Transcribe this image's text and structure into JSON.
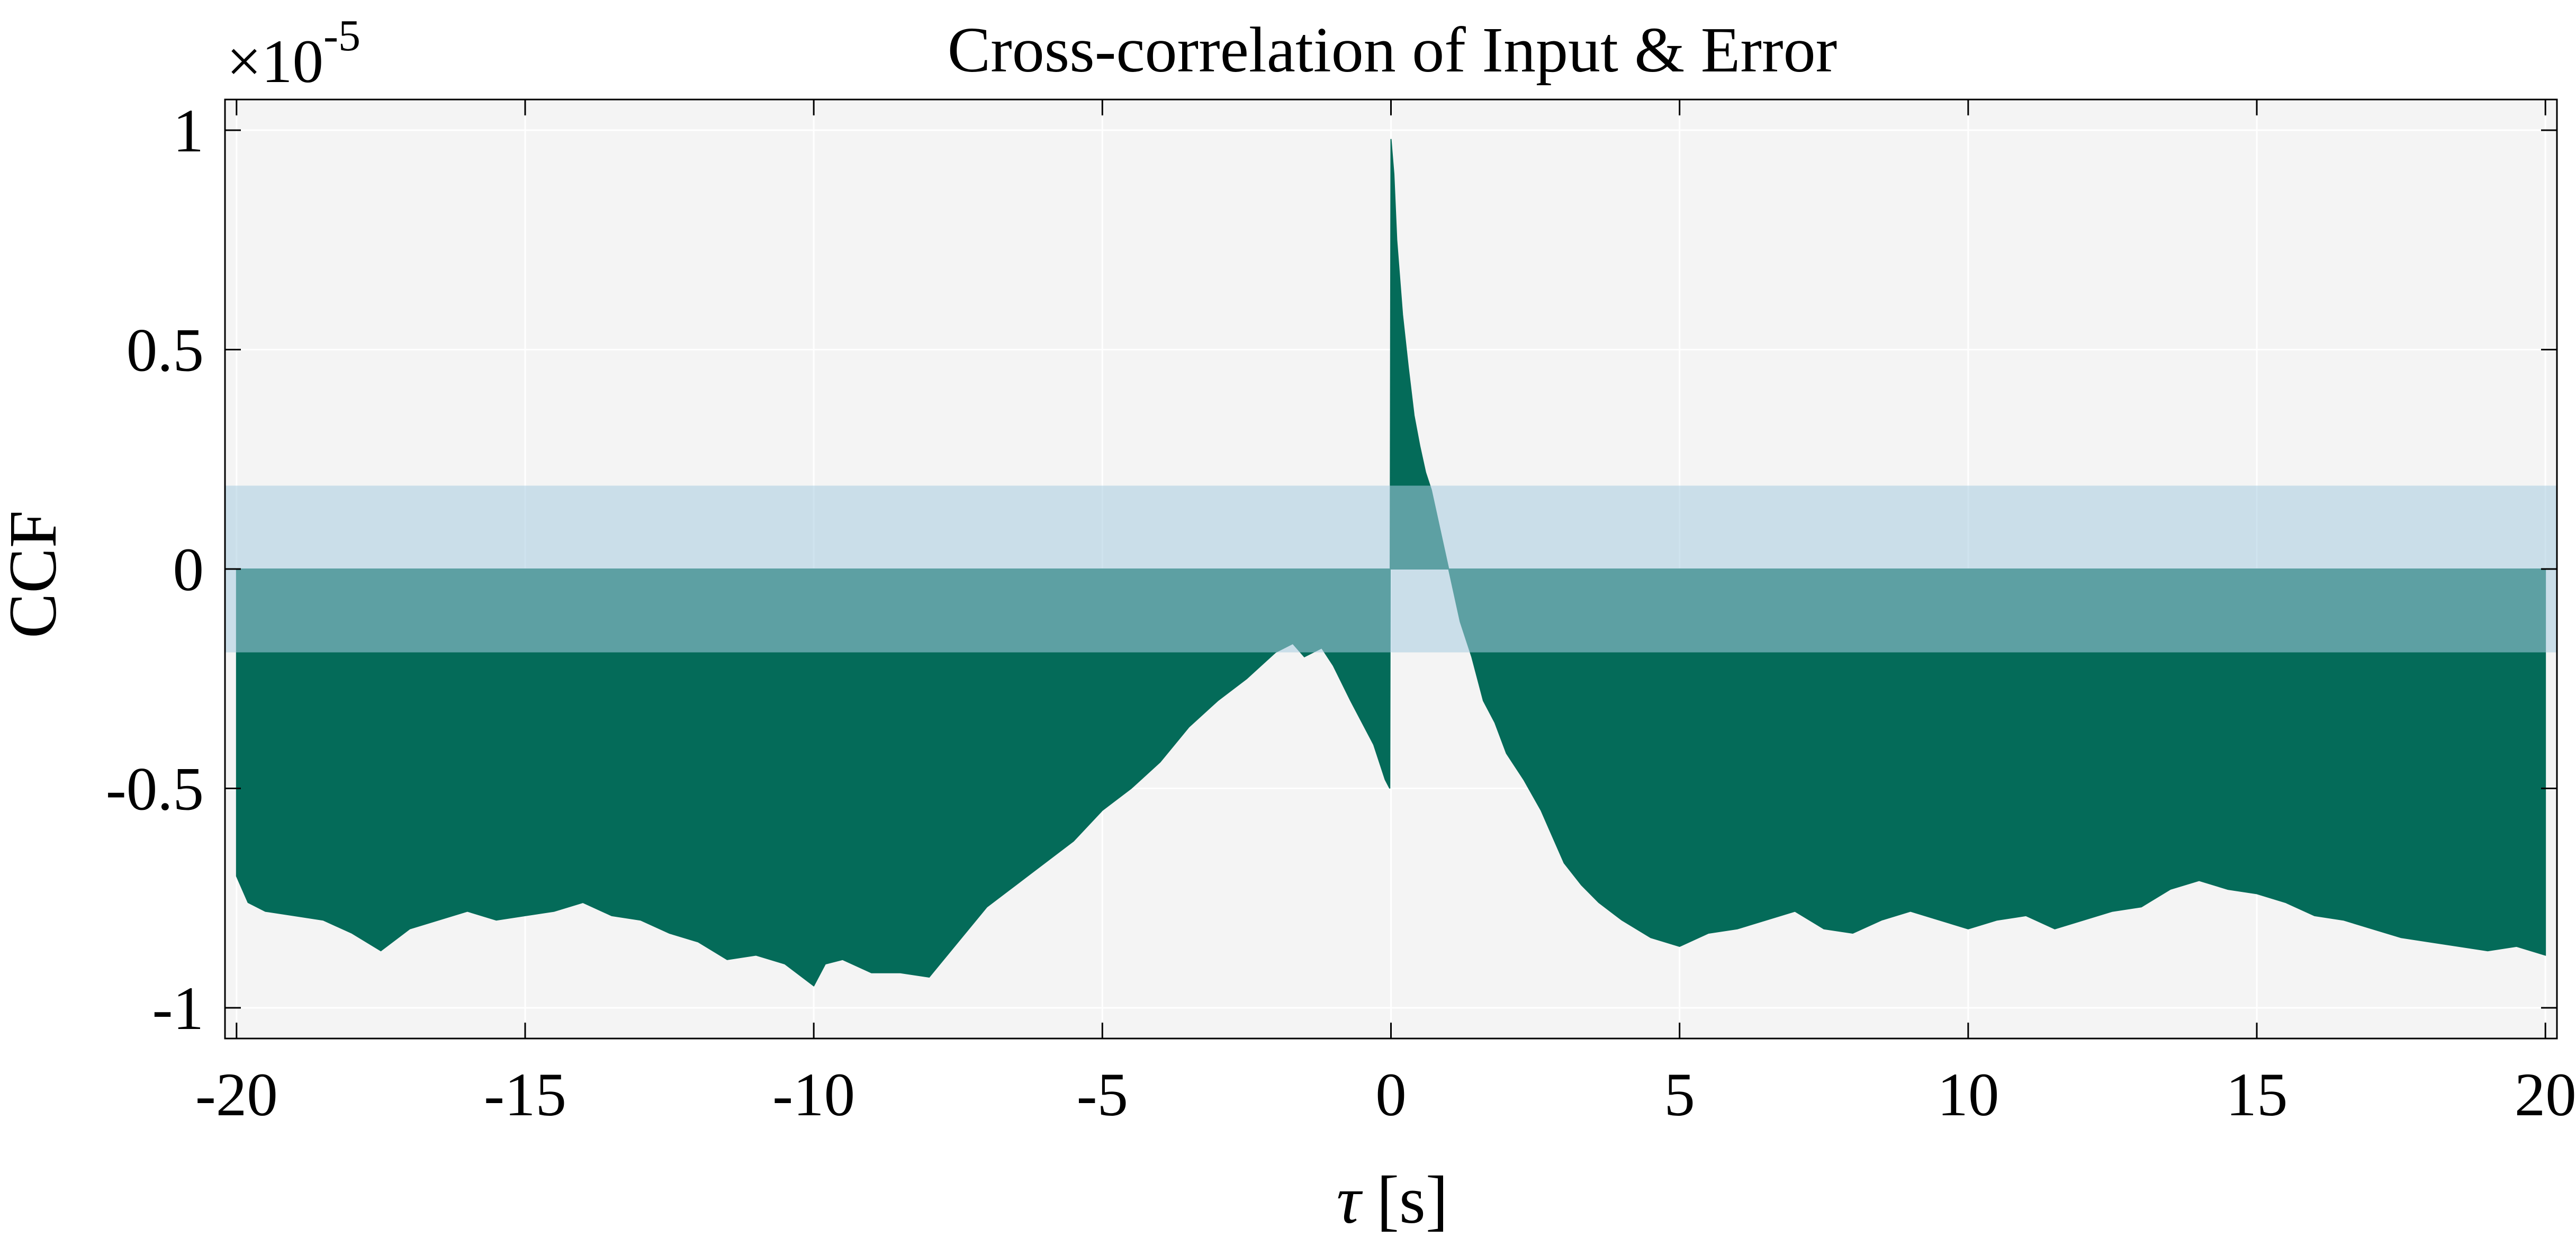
{
  "chart_data": {
    "type": "area",
    "title": "Cross-correlation of Input & Error",
    "xlabel_symbol": "τ",
    "xlabel_unit": "[s]",
    "ylabel": "CCF",
    "y_exponent_prefix": "×10",
    "y_exponent_power": "-5",
    "xlim": [
      -20.2,
      20.2
    ],
    "ylim": [
      -1.07,
      1.07
    ],
    "xticks": [
      -20,
      -15,
      -10,
      -5,
      0,
      5,
      10,
      15,
      20
    ],
    "xtick_labels": [
      "-20",
      "-15",
      "-10",
      "-5",
      "0",
      "5",
      "10",
      "15",
      "20"
    ],
    "yticks": [
      -1,
      -0.5,
      0,
      0.5,
      1
    ],
    "ytick_labels": [
      "-1",
      "-0.5",
      "0",
      "0.5",
      "1"
    ],
    "grid": true,
    "confidence_band": [
      -0.19,
      0.19
    ],
    "colors": {
      "fill": "#046b59",
      "band": "#a8cce0",
      "plot_background": "#f4f4f4",
      "grid": "#ffffff"
    },
    "series": [
      {
        "x": [
          -20.0,
          -19.8,
          -19.5,
          -19.0,
          -18.5,
          -18.0,
          -17.5,
          -17.0,
          -16.5,
          -16.0,
          -15.5,
          -15.0,
          -14.5,
          -14.0,
          -13.5,
          -13.0,
          -12.5,
          -12.0,
          -11.5,
          -11.0,
          -10.5,
          -10.0,
          -9.8,
          -9.5,
          -9.0,
          -8.5,
          -8.0,
          -7.5,
          -7.0,
          -6.5,
          -6.0,
          -5.5,
          -5.0,
          -4.5,
          -4.0,
          -3.5,
          -3.0,
          -2.5,
          -2.0,
          -1.7,
          -1.5,
          -1.2,
          -1.0,
          -0.7,
          -0.5,
          -0.3,
          -0.1,
          -0.02,
          0.0,
          0.05,
          0.1,
          0.2,
          0.3,
          0.4,
          0.5,
          0.6,
          0.7,
          0.8,
          0.9,
          1.0,
          1.2,
          1.4,
          1.6,
          1.8,
          2.0,
          2.3,
          2.6,
          3.0,
          3.3,
          3.6,
          4.0,
          4.5,
          5.0,
          5.5,
          6.0,
          6.5,
          7.0,
          7.5,
          8.0,
          8.5,
          9.0,
          9.5,
          10.0,
          10.5,
          11.0,
          11.5,
          12.0,
          12.5,
          13.0,
          13.5,
          14.0,
          14.5,
          15.0,
          15.5,
          16.0,
          16.5,
          17.0,
          17.5,
          18.0,
          18.5,
          19.0,
          19.5,
          20.0
        ],
        "y": [
          -0.7,
          -0.76,
          -0.78,
          -0.79,
          -0.8,
          -0.83,
          -0.87,
          -0.82,
          -0.8,
          -0.78,
          -0.8,
          -0.79,
          -0.78,
          -0.76,
          -0.79,
          -0.8,
          -0.83,
          -0.85,
          -0.89,
          -0.88,
          -0.9,
          -0.95,
          -0.9,
          -0.89,
          -0.92,
          -0.92,
          -0.93,
          -0.85,
          -0.77,
          -0.72,
          -0.67,
          -0.62,
          -0.55,
          -0.5,
          -0.44,
          -0.36,
          -0.3,
          -0.25,
          -0.19,
          -0.17,
          -0.2,
          -0.18,
          -0.22,
          -0.3,
          -0.35,
          -0.4,
          -0.48,
          -0.5,
          0.98,
          0.9,
          0.75,
          0.58,
          0.46,
          0.35,
          0.28,
          0.22,
          0.18,
          0.12,
          0.06,
          0.0,
          -0.12,
          -0.2,
          -0.3,
          -0.35,
          -0.42,
          -0.48,
          -0.55,
          -0.67,
          -0.72,
          -0.76,
          -0.8,
          -0.84,
          -0.86,
          -0.83,
          -0.82,
          -0.8,
          -0.78,
          -0.82,
          -0.83,
          -0.8,
          -0.78,
          -0.8,
          -0.82,
          -0.8,
          -0.79,
          -0.82,
          -0.8,
          -0.78,
          -0.77,
          -0.73,
          -0.71,
          -0.73,
          -0.74,
          -0.76,
          -0.79,
          -0.8,
          -0.82,
          -0.84,
          -0.85,
          -0.86,
          -0.87,
          -0.86,
          -0.88
        ]
      }
    ]
  }
}
